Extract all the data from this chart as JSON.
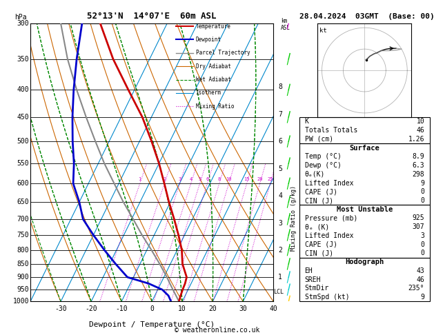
{
  "title_left": "52°13'N  14°07'E  60m ASL",
  "title_right": "28.04.2024  03GMT  (Base: 00)",
  "xlabel": "Dewpoint / Temperature (°C)",
  "ylabel_left": "hPa",
  "km_asl_label": "km\nASL",
  "mixing_ratio_label": "Mixing Ratio (g/kg)",
  "pressure_levels": [
    300,
    350,
    400,
    450,
    500,
    550,
    600,
    650,
    700,
    750,
    800,
    850,
    900,
    950,
    1000
  ],
  "temp_range": [
    -40,
    40
  ],
  "temp_ticks": [
    -30,
    -20,
    -10,
    0,
    10,
    20,
    30,
    40
  ],
  "pres_min": 300,
  "pres_max": 1000,
  "skew_factor": 45.0,
  "temp_profile": {
    "pressure": [
      1000,
      975,
      950,
      925,
      900,
      850,
      800,
      750,
      700,
      650,
      600,
      550,
      500,
      450,
      400,
      350,
      300
    ],
    "temperature": [
      8.9,
      8.5,
      8.2,
      8.0,
      7.5,
      4.0,
      1.5,
      -2.0,
      -6.0,
      -10.5,
      -15.0,
      -20.0,
      -26.0,
      -33.0,
      -42.0,
      -52.0,
      -62.0
    ]
  },
  "dewpoint_profile": {
    "pressure": [
      1000,
      975,
      950,
      925,
      900,
      850,
      800,
      750,
      700,
      650,
      600,
      550,
      500,
      450,
      400,
      350,
      300
    ],
    "temperature": [
      6.3,
      4.5,
      1.5,
      -4.0,
      -12.0,
      -18.0,
      -24.0,
      -30.0,
      -36.0,
      -40.0,
      -45.0,
      -48.0,
      -52.0,
      -56.0,
      -60.0,
      -64.0,
      -68.0
    ]
  },
  "parcel_profile": {
    "pressure": [
      1000,
      975,
      950,
      925,
      900,
      850,
      800,
      750,
      700,
      650,
      600,
      550,
      500,
      450,
      400,
      350,
      300
    ],
    "temperature": [
      8.9,
      7.0,
      5.0,
      3.0,
      1.0,
      -3.5,
      -8.5,
      -14.0,
      -19.5,
      -25.5,
      -31.5,
      -38.0,
      -44.5,
      -51.5,
      -59.0,
      -67.0,
      -75.0
    ]
  },
  "lcl_pressure": 960,
  "colors": {
    "temperature": "#cc0000",
    "dewpoint": "#0000cc",
    "parcel": "#888888",
    "dry_adiabat": "#cc6600",
    "wet_adiabat": "#008800",
    "isotherm": "#0088cc",
    "mixing_ratio": "#cc00cc",
    "background": "#ffffff",
    "grid": "#000000"
  },
  "info_panel": {
    "K": 10,
    "Totals_Totals": 46,
    "PW_cm": 1.26,
    "Surface_Temp": 8.9,
    "Surface_Dewp": 6.3,
    "Surface_thetae": 298,
    "Surface_LI": 9,
    "Surface_CAPE": 0,
    "Surface_CIN": 0,
    "MU_Pressure": 925,
    "MU_thetae": 307,
    "MU_LI": 3,
    "MU_CAPE": 0,
    "MU_CIN": 0,
    "EH": 43,
    "SREH": 46,
    "StmDir": 235,
    "StmSpd": 9
  },
  "km_labels": [
    1,
    2,
    3,
    4,
    5,
    6,
    7,
    8
  ],
  "mixing_ratio_values": [
    1,
    2,
    3,
    4,
    5,
    6,
    8,
    10,
    15,
    20,
    25
  ],
  "isotherm_values": [
    -40,
    -30,
    -20,
    -10,
    0,
    10,
    20,
    30,
    40
  ],
  "dry_adiabat_T0": [
    -30,
    -20,
    -10,
    0,
    10,
    20,
    30,
    40,
    50,
    60
  ],
  "wet_adiabat_T0": [
    -20,
    -10,
    0,
    10,
    20,
    30,
    40
  ],
  "copyright": "© weatheronline.co.uk"
}
